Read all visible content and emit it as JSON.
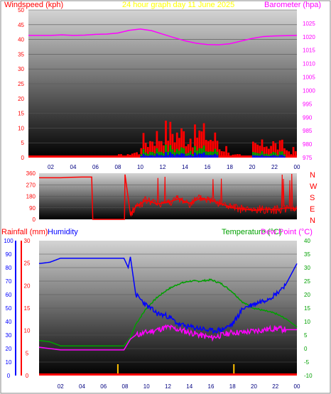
{
  "colors": {
    "wind": "#ff0000",
    "gust_green": "#00a000",
    "gust_blue": "#0000ff",
    "barometer": "#ff00ff",
    "direction": "#ff0000",
    "humidity": "#0000ff",
    "rainfall": "#ff0000",
    "temperature": "#00a000",
    "dewpoint": "#ff00ff",
    "title": "#ffff00",
    "rain_axis": "#ff0000",
    "hum_axis": "#0000ff",
    "temp_axis": "#00a000",
    "dew_axis": "#ff00ff"
  },
  "chart_data": [
    {
      "type": "bar",
      "title": "24 hour graph day   11 June 2025",
      "ylabel": "Windspeed (kph)",
      "y2label": "Barometer (hpa)",
      "ylim": [
        0,
        50
      ],
      "y2lim": [
        975,
        1030
      ],
      "yticks": [
        "0",
        "5",
        "10",
        "15",
        "20",
        "25",
        "30",
        "35",
        "40",
        "45",
        "50"
      ],
      "y2ticks": [
        "975",
        "980",
        "985",
        "990",
        "995",
        "1000",
        "1005",
        "1010",
        "1015",
        "1020",
        "1025"
      ],
      "xticks": [
        "02",
        "04",
        "06",
        "08",
        "10",
        "12",
        "14",
        "16",
        "18",
        "20",
        "22",
        "00"
      ],
      "wind_hourly": [
        0,
        0,
        0,
        0,
        0,
        0,
        0,
        0,
        1,
        2,
        7,
        9,
        11,
        10,
        9,
        10,
        8,
        4,
        1,
        0,
        5,
        6,
        5,
        3
      ],
      "barometer": {
        "x": [
          0,
          1,
          2,
          3,
          4,
          5,
          6,
          7,
          8,
          9,
          10,
          11,
          12,
          13,
          14,
          15,
          16,
          17,
          18,
          19,
          20,
          21,
          22,
          23,
          24
        ],
        "y": [
          1020.5,
          1020.5,
          1020.5,
          1020.7,
          1020.5,
          1020.6,
          1020.9,
          1021.0,
          1021.4,
          1022.4,
          1022.9,
          1022.3,
          1021.0,
          1019.7,
          1018.5,
          1017.6,
          1017.1,
          1017.0,
          1017.4,
          1018.4,
          1019.4,
          1020.1,
          1020.3,
          1020.4,
          1020.5
        ]
      }
    },
    {
      "type": "scatter",
      "ylim": [
        0,
        360
      ],
      "yticks": [
        "0",
        "90",
        "180",
        "270",
        "360"
      ],
      "compass": [
        "N",
        "W",
        "S",
        "E",
        "N"
      ],
      "direction": {
        "x": [
          0,
          1,
          2,
          3,
          4,
          4.9,
          5,
          7,
          7.95,
          8,
          8.5,
          9,
          10,
          11,
          12,
          13,
          14,
          15,
          16,
          17,
          18,
          19,
          20,
          21,
          22,
          23,
          24
        ],
        "y": [
          325,
          325,
          325,
          328,
          330,
          330,
          0,
          0,
          0,
          350,
          40,
          100,
          150,
          120,
          135,
          160,
          125,
          165,
          150,
          120,
          90,
          80,
          70,
          80,
          75,
          90,
          85
        ]
      }
    },
    {
      "type": "line",
      "ylabel": "Rainfall (mm)",
      "y2label": "Humidity",
      "y3label": "Temperature (°C)",
      "y4label": "Dew Point (°C)",
      "humidity_ticks": [
        "0",
        "10",
        "20",
        "30",
        "40",
        "50",
        "60",
        "70",
        "80",
        "90",
        "100"
      ],
      "rain_ticks": [
        "0",
        "5",
        "10",
        "15",
        "20",
        "25",
        "30"
      ],
      "temp_ticks": [
        "-10",
        "-5",
        "0",
        "5",
        "10",
        "15",
        "20",
        "25",
        "30",
        "35",
        "40"
      ],
      "temp_lim": [
        -10,
        40
      ],
      "xticks": [
        "02",
        "04",
        "06",
        "08",
        "10",
        "12",
        "14",
        "16",
        "18",
        "20",
        "22",
        "00"
      ],
      "humidity": {
        "x": [
          0,
          1,
          2,
          3,
          4,
          5,
          6,
          7,
          7.9,
          8.3,
          8.5,
          9,
          10,
          11,
          12,
          13,
          14,
          15,
          16,
          17,
          18,
          19,
          20,
          21,
          22,
          23,
          24
        ],
        "y": [
          83,
          84,
          87,
          87,
          87,
          87,
          87,
          87,
          87,
          80,
          88,
          60,
          52,
          46,
          44,
          38,
          36,
          35,
          33,
          34,
          38,
          50,
          53,
          56,
          60,
          68,
          83
        ]
      },
      "temperature": {
        "x": [
          0,
          1,
          2,
          3,
          4,
          5,
          6,
          7,
          7.9,
          8.5,
          9,
          10,
          11,
          12,
          13,
          14,
          15,
          16,
          17,
          18,
          19,
          20,
          21,
          22,
          23,
          24
        ],
        "y": [
          3,
          2.5,
          1,
          1,
          1,
          1,
          1,
          1,
          1,
          4,
          9,
          15,
          19,
          22,
          24,
          25,
          25,
          25.5,
          24,
          21,
          17,
          15,
          14,
          13,
          11,
          8
        ]
      },
      "dewpoint": {
        "x": [
          0,
          1,
          2,
          3,
          4,
          5,
          6,
          7,
          7.9,
          8.5,
          9,
          10,
          11,
          12,
          13,
          14,
          15,
          16,
          17,
          18,
          19,
          20,
          21,
          22,
          23,
          24
        ],
        "y": [
          0.5,
          0,
          -0.5,
          -0.5,
          -0.5,
          -0.5,
          -0.5,
          -0.5,
          -0.5,
          3.5,
          5,
          6,
          7,
          8,
          7,
          6,
          5,
          4,
          5,
          6,
          6,
          6.5,
          7,
          7.5,
          7,
          7
        ]
      },
      "rainfall_marks": [
        7.3,
        18.1
      ]
    }
  ]
}
